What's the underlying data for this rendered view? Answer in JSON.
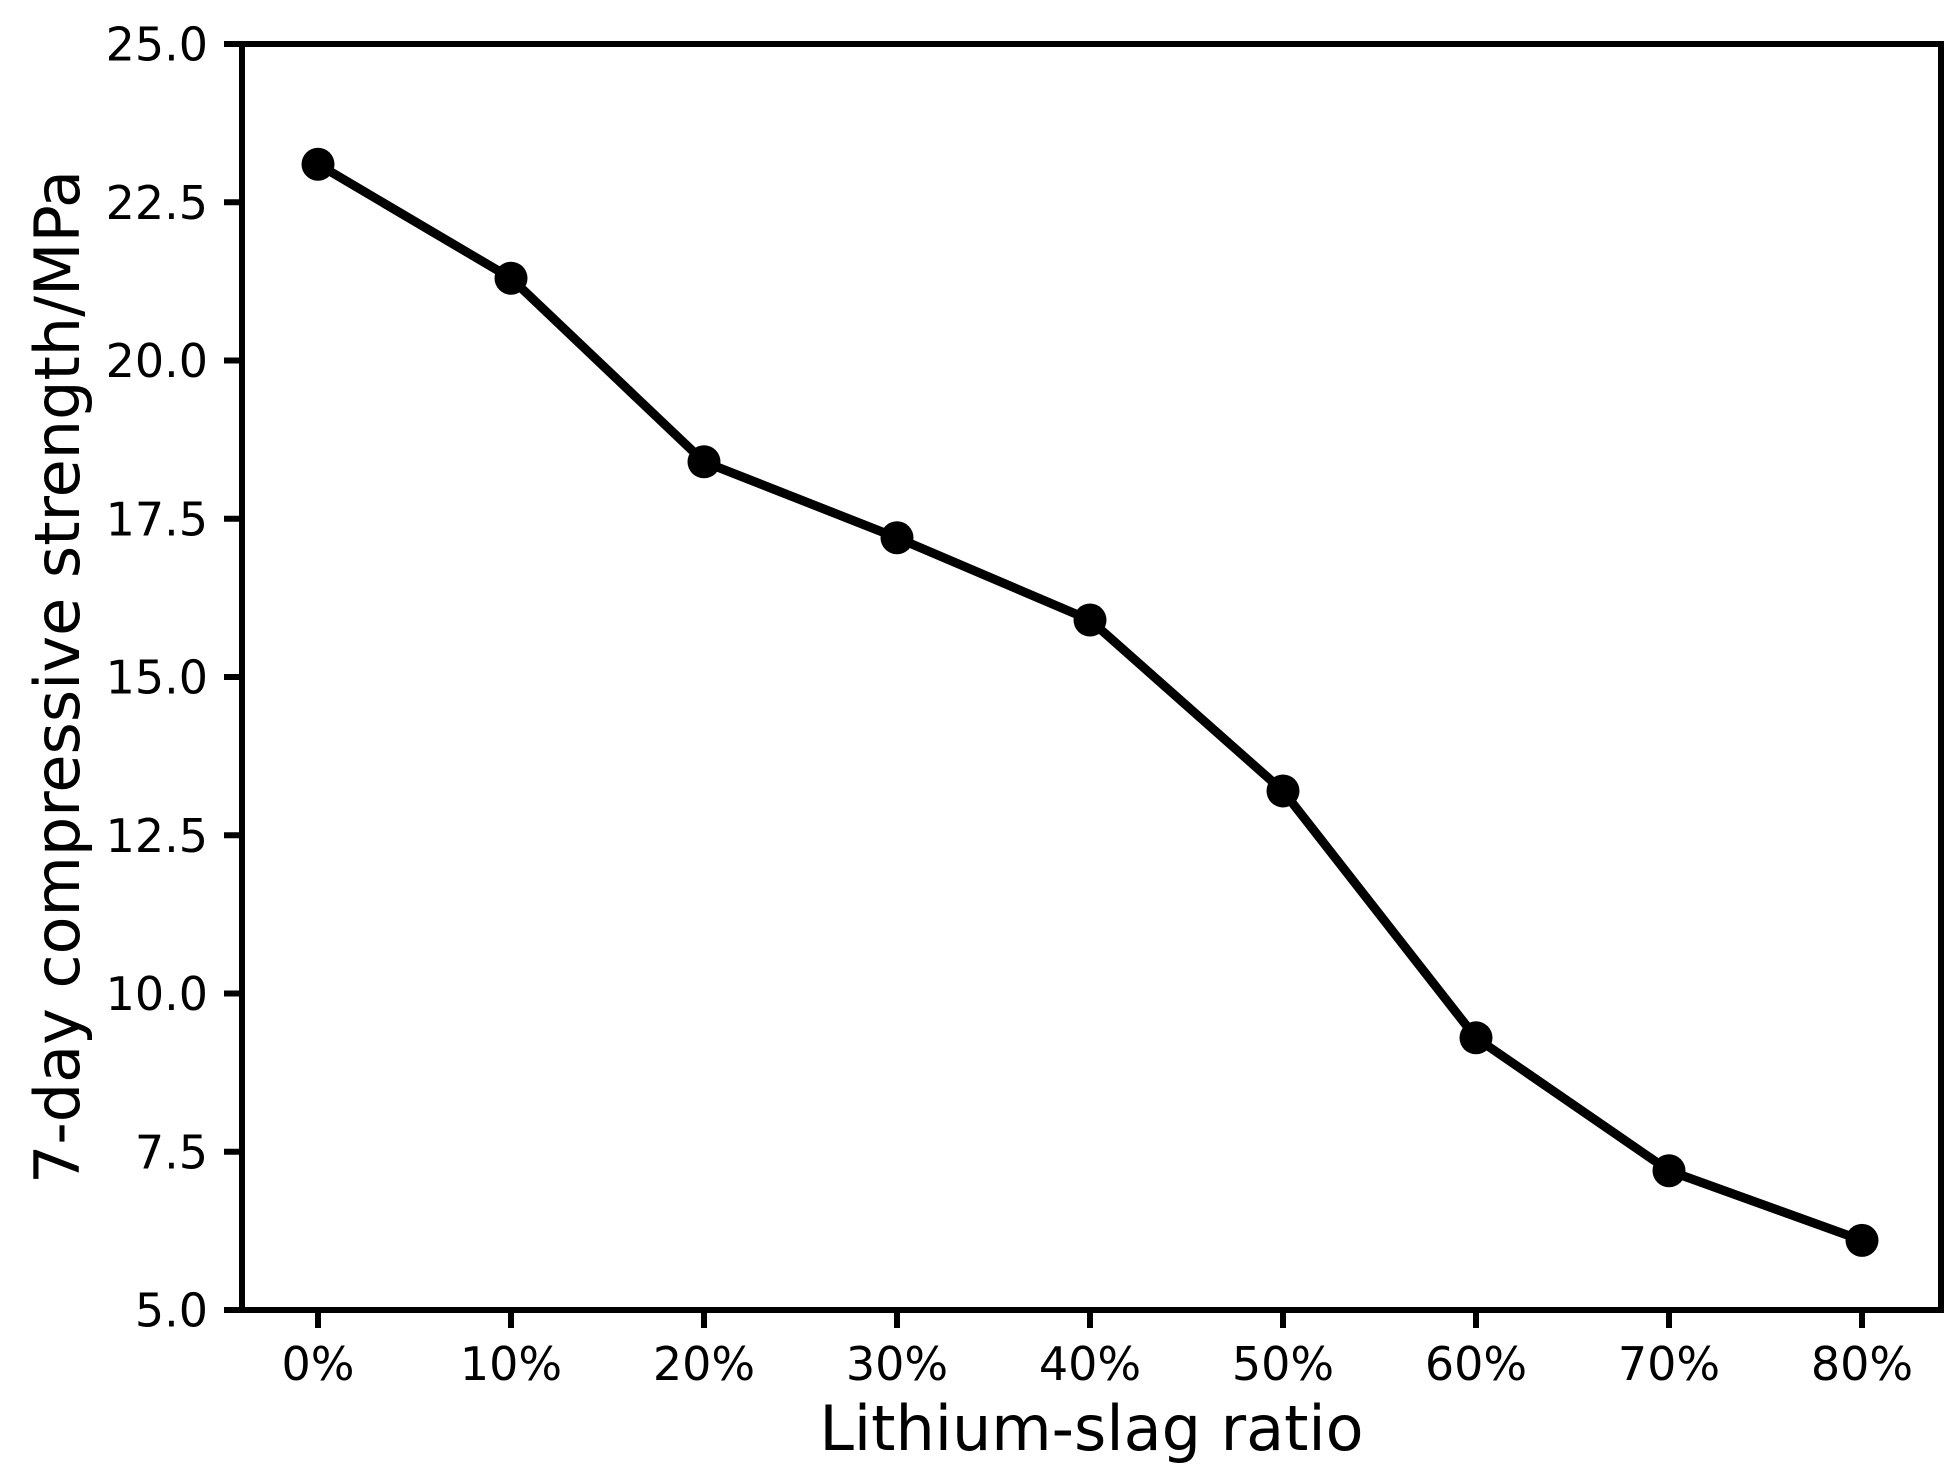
{
  "chart_data": {
    "type": "line",
    "categories": [
      "0%",
      "10%",
      "20%",
      "30%",
      "40%",
      "50%",
      "60%",
      "70%",
      "80%"
    ],
    "values": [
      23.1,
      21.3,
      18.4,
      17.2,
      15.9,
      13.2,
      9.3,
      7.2,
      6.1
    ],
    "series_name": "7-day compressive strength",
    "title": "",
    "xlabel": "Lithium-slag ratio",
    "ylabel": "7-day compressive strength/MPa",
    "ylim": [
      5.0,
      25.0
    ],
    "yticks": [
      5.0,
      7.5,
      10.0,
      12.5,
      15.0,
      17.5,
      20.0,
      22.5,
      25.0
    ],
    "ytick_labels": [
      "5.0",
      "7.5",
      "10.0",
      "12.5",
      "15.0",
      "17.5",
      "20.0",
      "22.5",
      "25.0"
    ],
    "grid": false,
    "legend_position": "none",
    "line_color": "#000000",
    "marker": "circle",
    "marker_color": "#000000",
    "axis_color": "#000000",
    "background_color": "#ffffff"
  }
}
